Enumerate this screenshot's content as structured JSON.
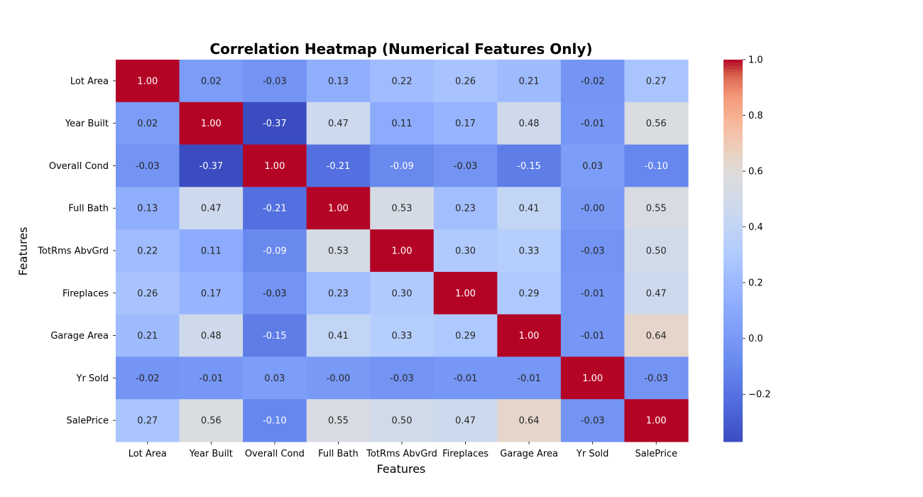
{
  "chart_data": {
    "type": "heatmap",
    "title": "Correlation Heatmap (Numerical Features Only)",
    "xlabel": "Features",
    "ylabel": "Features",
    "categories": [
      "Lot Area",
      "Year Built",
      "Overall Cond",
      "Full Bath",
      "TotRms AbvGrd",
      "Fireplaces",
      "Garage Area",
      "Yr Sold",
      "SalePrice"
    ],
    "matrix": [
      [
        1.0,
        0.02,
        -0.03,
        0.13,
        0.22,
        0.26,
        0.21,
        -0.02,
        0.27
      ],
      [
        0.02,
        1.0,
        -0.37,
        0.47,
        0.11,
        0.17,
        0.48,
        -0.01,
        0.56
      ],
      [
        -0.03,
        -0.37,
        1.0,
        -0.21,
        -0.09,
        -0.03,
        -0.15,
        0.03,
        -0.1
      ],
      [
        0.13,
        0.47,
        -0.21,
        1.0,
        0.53,
        0.23,
        0.41,
        -0.0,
        0.55
      ],
      [
        0.22,
        0.11,
        -0.09,
        0.53,
        1.0,
        0.3,
        0.33,
        -0.03,
        0.5
      ],
      [
        0.26,
        0.17,
        -0.03,
        0.23,
        0.3,
        1.0,
        0.29,
        -0.01,
        0.47
      ],
      [
        0.21,
        0.48,
        -0.15,
        0.41,
        0.33,
        0.29,
        1.0,
        -0.01,
        0.64
      ],
      [
        -0.02,
        -0.01,
        0.03,
        -0.0,
        -0.03,
        -0.01,
        -0.01,
        1.0,
        -0.03
      ],
      [
        0.27,
        0.56,
        -0.1,
        0.55,
        0.5,
        0.47,
        0.64,
        -0.03,
        1.0
      ]
    ],
    "value_format": "2 decimals",
    "colormap": "coolwarm",
    "color_range": [
      -0.37,
      1.0
    ],
    "colorbar_ticks": [
      -0.2,
      0.0,
      0.2,
      0.4,
      0.6,
      0.8,
      1.0
    ],
    "colorbar_tick_labels": [
      "−0.2",
      "0.0",
      "0.2",
      "0.4",
      "0.6",
      "0.8",
      "1.0"
    ],
    "grid": false,
    "legend": "colorbar-right"
  }
}
